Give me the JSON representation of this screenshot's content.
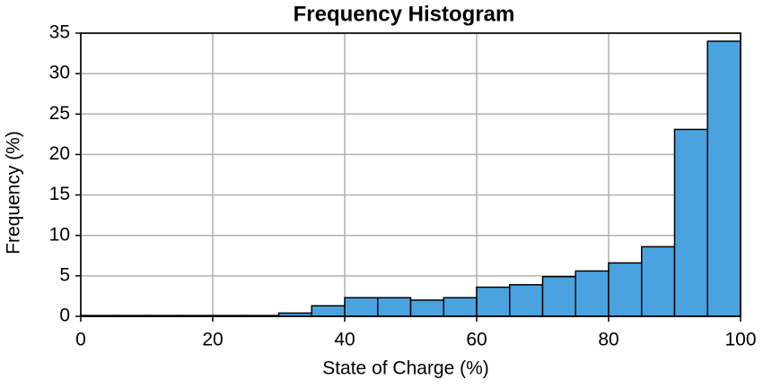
{
  "chart_data": {
    "type": "histogram",
    "title": "Frequency Histogram",
    "x_label": "State of Charge (%)",
    "y_label": "Frequency (%)",
    "bins": [
      0,
      5,
      10,
      15,
      20,
      25,
      30,
      35,
      40,
      45,
      50,
      55,
      60,
      65,
      70,
      75,
      80,
      85,
      90,
      95,
      100
    ],
    "values": [
      0.1,
      0.1,
      0.1,
      0.1,
      0.1,
      0.1,
      0.4,
      1.3,
      2.3,
      2.3,
      2.0,
      2.3,
      3.6,
      3.9,
      4.9,
      5.6,
      6.6,
      8.6,
      23.1,
      34.0
    ],
    "color": "#4aa3df",
    "xlim": [
      0,
      100
    ],
    "xticks": [
      0,
      20,
      40,
      60,
      80,
      100
    ],
    "ylim": [
      0,
      35
    ],
    "yticks": [
      0,
      5,
      10,
      15,
      20,
      25,
      30,
      35
    ],
    "grid": true
  }
}
